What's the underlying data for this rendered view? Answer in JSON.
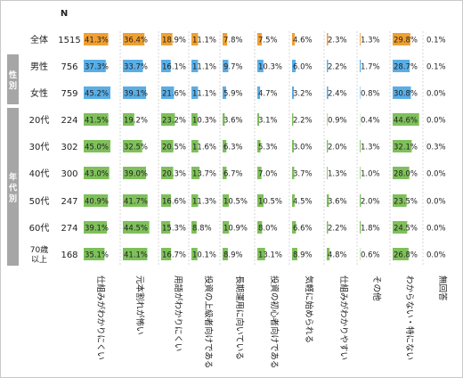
{
  "chart_data": {
    "type": "table",
    "n_header": "N",
    "columns": [
      "仕組みがわかりにくい",
      "元本割れが怖い",
      "用語がわかりにくい",
      "投資の上級者向けである",
      "長期運用に向いている",
      "投資の初心者向けである",
      "気軽に始められる",
      "仕組みがわかりやすい",
      "その他",
      "わからない・特にない",
      "無回答"
    ],
    "groups": [
      {
        "label": "",
        "rows": [
          0
        ]
      },
      {
        "label": "性別",
        "rows": [
          1,
          2
        ]
      },
      {
        "label": "年代別",
        "rows": [
          3,
          4,
          5,
          6,
          7,
          8
        ]
      }
    ],
    "rows": [
      {
        "label": "全体",
        "n": 1515,
        "values": [
          41.3,
          36.4,
          18.9,
          11.1,
          7.8,
          7.5,
          4.6,
          2.3,
          1.3,
          29.8,
          0.1
        ]
      },
      {
        "label": "男性",
        "n": 756,
        "values": [
          37.3,
          33.7,
          16.1,
          11.1,
          9.7,
          10.3,
          6.0,
          2.2,
          1.7,
          28.7,
          0.1
        ]
      },
      {
        "label": "女性",
        "n": 759,
        "values": [
          45.2,
          39.1,
          21.6,
          11.1,
          5.9,
          4.7,
          3.2,
          2.4,
          0.8,
          30.8,
          0.0
        ]
      },
      {
        "label": "20代",
        "n": 224,
        "values": [
          41.5,
          19.2,
          23.2,
          10.3,
          3.6,
          3.1,
          2.2,
          0.9,
          0.4,
          44.6,
          0.0
        ]
      },
      {
        "label": "30代",
        "n": 302,
        "values": [
          45.0,
          32.5,
          20.5,
          11.6,
          6.3,
          5.3,
          3.0,
          2.0,
          1.3,
          32.1,
          0.3
        ]
      },
      {
        "label": "40代",
        "n": 300,
        "values": [
          43.0,
          39.0,
          20.3,
          13.7,
          6.7,
          7.0,
          3.7,
          1.3,
          1.0,
          28.0,
          0.0
        ]
      },
      {
        "label": "50代",
        "n": 247,
        "values": [
          40.9,
          41.7,
          16.6,
          11.3,
          10.5,
          10.5,
          4.5,
          3.6,
          2.0,
          23.5,
          0.0
        ]
      },
      {
        "label": "60代",
        "n": 274,
        "values": [
          39.1,
          44.5,
          15.3,
          8.8,
          10.9,
          8.0,
          6.6,
          2.2,
          1.8,
          24.5,
          0.0
        ]
      },
      {
        "label": "70歳\n以上",
        "n": 168,
        "values": [
          35.1,
          41.1,
          16.7,
          10.1,
          8.9,
          13.1,
          8.9,
          4.8,
          0.6,
          26.8,
          0.0
        ]
      }
    ],
    "value_suffix": "%",
    "bar_max": 45,
    "colors": {
      "total": "#f0a030",
      "gender": "#5aaee6",
      "age": "#7ec05a",
      "group_band": "#a6a6a6",
      "divider": "#bbbbbb"
    }
  }
}
